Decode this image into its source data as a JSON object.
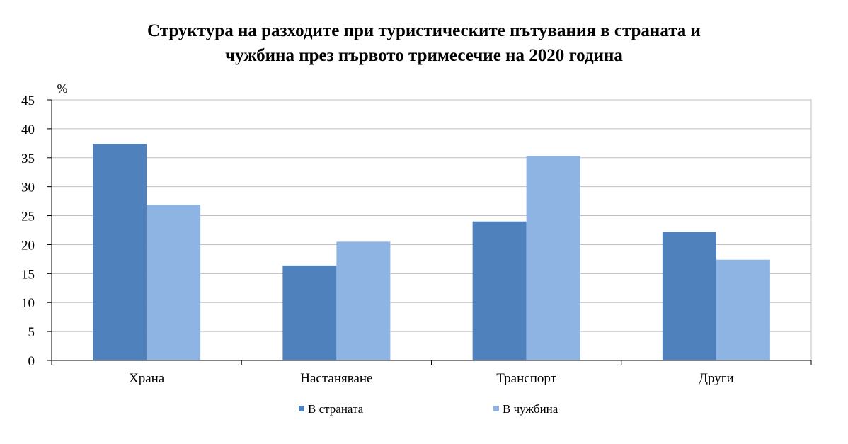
{
  "chart_data": {
    "type": "bar",
    "title_line1": "Структура на разходите при туристическите пътувания в страната и",
    "title_line2": "чужбина през първото тримесечие на 2020 година",
    "ylabel": "%",
    "ylim": [
      0,
      45
    ],
    "yticks": [
      "0",
      "5",
      "10",
      "15",
      "20",
      "25",
      "30",
      "35",
      "40",
      "45"
    ],
    "categories": [
      "Храна",
      "Настаняване",
      "Транспорт",
      "Други"
    ],
    "series": [
      {
        "name": "В страната",
        "values": [
          37.4,
          16.4,
          24.0,
          22.2
        ],
        "color": "#4f81bd"
      },
      {
        "name": "В чужбина",
        "values": [
          26.9,
          20.5,
          35.3,
          17.4
        ],
        "color": "#8eb4e3"
      }
    ],
    "grid": true,
    "legend_position": "bottom"
  }
}
